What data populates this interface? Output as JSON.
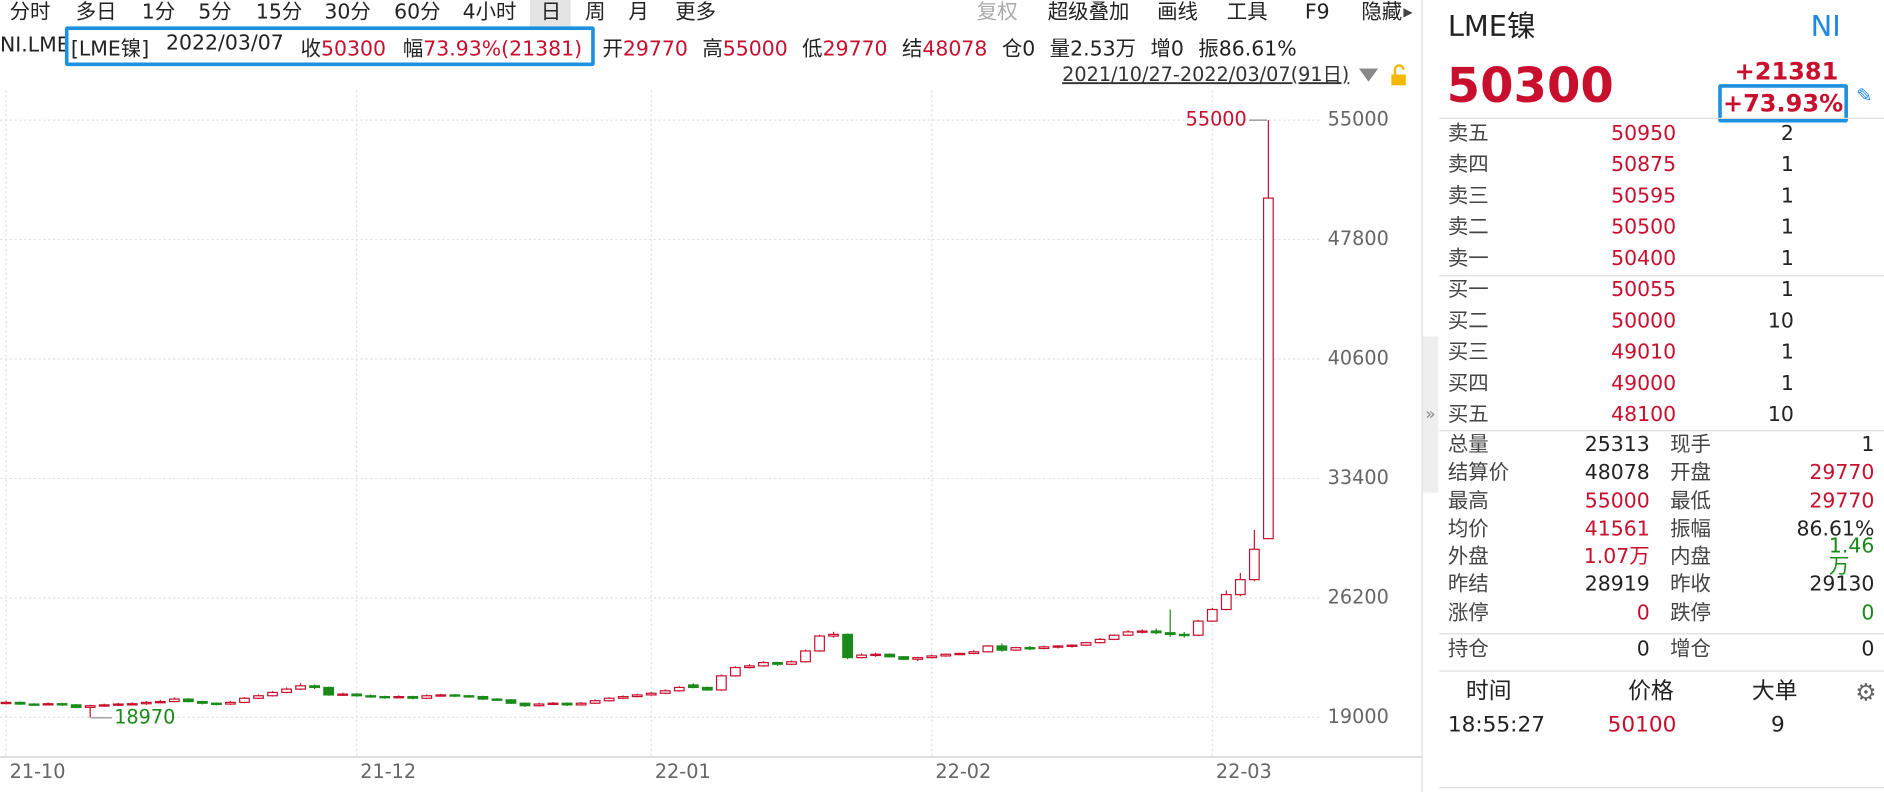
{
  "toolbar": {
    "periods": [
      "分时",
      "多日",
      "1分",
      "5分",
      "15分",
      "30分",
      "60分",
      "4小时",
      "日",
      "周",
      "月",
      "更多"
    ],
    "tools": [
      "复权",
      "超级叠加",
      "画线",
      "工具",
      "F9",
      "隐藏"
    ]
  },
  "info_bar": {
    "symbol": "NI.LME",
    "name": "[LME镍]",
    "date": "2022/03/07",
    "items": [
      {
        "label": "收",
        "value": 50300,
        "color": "#c8102e"
      },
      {
        "label": "幅",
        "value": "73.93%(21381)",
        "color": "#c8102e"
      },
      {
        "label": "开",
        "value": 29770,
        "color": "#c8102e"
      },
      {
        "label": "高",
        "value": 55000,
        "color": "#c8102e"
      },
      {
        "label": "低",
        "value": 29770,
        "color": "#c8102e"
      },
      {
        "label": "结",
        "value": 48078,
        "color": "#c8102e"
      },
      {
        "label": "仓",
        "value": 0,
        "color": "#222222"
      },
      {
        "label": "量",
        "value": "2.53万",
        "color": "#222222"
      },
      {
        "label": "增",
        "value": 0,
        "color": "#222222"
      },
      {
        "label": "振",
        "value": "86.61%",
        "color": "#222222"
      }
    ]
  },
  "chart": {
    "type": "candlestick",
    "range_label": "2021/10/27-2022/03/07(91日)",
    "up_color": "#c8102e",
    "down_color": "#1a8a1a",
    "ylim": [
      16610,
      56810
    ],
    "yticks": [
      19000,
      26200,
      33400,
      40600,
      47800,
      55000
    ],
    "xlim": [
      -0.43,
      93.8
    ],
    "xticks": [
      {
        "value": 0,
        "label": "21-10"
      },
      {
        "value": 25,
        "label": "21-12"
      },
      {
        "value": 46,
        "label": "22-01"
      },
      {
        "value": 66,
        "label": "22-02"
      },
      {
        "value": 86,
        "label": "22-03"
      }
    ],
    "candles": [
      [
        19850,
        20000,
        19780,
        19900
      ],
      [
        19900,
        19950,
        19750,
        19800
      ],
      [
        19800,
        19850,
        19700,
        19780
      ],
      [
        19780,
        19900,
        19720,
        19820
      ],
      [
        19820,
        19880,
        19680,
        19750
      ],
      [
        19750,
        19800,
        19550,
        19600
      ],
      [
        19600,
        19760,
        18970,
        19700
      ],
      [
        19700,
        19820,
        19620,
        19750
      ],
      [
        19750,
        19880,
        19680,
        19800
      ],
      [
        19800,
        19900,
        19720,
        19820
      ],
      [
        19820,
        19980,
        19750,
        19900
      ],
      [
        19900,
        20050,
        19850,
        19950
      ],
      [
        19950,
        20200,
        19900,
        20100
      ],
      [
        20100,
        20150,
        19900,
        19950
      ],
      [
        19950,
        20000,
        19780,
        19850
      ],
      [
        19850,
        19900,
        19720,
        19800
      ],
      [
        19800,
        19980,
        19750,
        19900
      ],
      [
        19900,
        20220,
        19850,
        20150
      ],
      [
        20150,
        20380,
        20100,
        20300
      ],
      [
        20300,
        20580,
        20250,
        20500
      ],
      [
        20500,
        20800,
        20450,
        20700
      ],
      [
        20700,
        21050,
        20650,
        20900
      ],
      [
        20900,
        20980,
        20700,
        20800
      ],
      [
        20800,
        20850,
        20300,
        20350
      ],
      [
        20350,
        20480,
        20300,
        20400
      ],
      [
        20400,
        20450,
        20250,
        20300
      ],
      [
        20300,
        20380,
        20180,
        20250
      ],
      [
        20250,
        20300,
        20120,
        20200
      ],
      [
        20200,
        20320,
        20150,
        20250
      ],
      [
        20250,
        20300,
        20080,
        20150
      ],
      [
        20150,
        20380,
        20100,
        20300
      ],
      [
        20300,
        20420,
        20250,
        20350
      ],
      [
        20350,
        20400,
        20220,
        20300
      ],
      [
        20300,
        20350,
        20180,
        20250
      ],
      [
        20250,
        20300,
        20050,
        20100
      ],
      [
        20100,
        20150,
        19980,
        20050
      ],
      [
        20050,
        20100,
        19800,
        19850
      ],
      [
        19850,
        19900,
        19620,
        19700
      ],
      [
        19700,
        19880,
        19650,
        19800
      ],
      [
        19800,
        19920,
        19750,
        19850
      ],
      [
        19850,
        19900,
        19680,
        19750
      ],
      [
        19750,
        19920,
        19700,
        19850
      ],
      [
        19850,
        20080,
        19800,
        20000
      ],
      [
        20000,
        20220,
        19950,
        20150
      ],
      [
        20150,
        20320,
        20100,
        20250
      ],
      [
        20250,
        20420,
        20200,
        20350
      ],
      [
        20350,
        20520,
        20300,
        20450
      ],
      [
        20450,
        20680,
        20400,
        20600
      ],
      [
        20600,
        20880,
        20550,
        20800
      ],
      [
        20950,
        21050,
        20750,
        20800
      ],
      [
        20800,
        20850,
        20600,
        20650
      ],
      [
        20650,
        21580,
        20600,
        21500
      ],
      [
        21500,
        22080,
        21450,
        22000
      ],
      [
        22000,
        22200,
        21950,
        22100
      ],
      [
        22100,
        22380,
        22050,
        22300
      ],
      [
        22300,
        22350,
        22100,
        22200
      ],
      [
        22200,
        22420,
        22150,
        22350
      ],
      [
        22350,
        23080,
        22300,
        23000
      ],
      [
        23000,
        23980,
        22950,
        23900
      ],
      [
        23900,
        24150,
        23800,
        24000
      ],
      [
        24000,
        24050,
        22500,
        22600
      ],
      [
        22600,
        22850,
        22550,
        22750
      ],
      [
        22750,
        22900,
        22650,
        22800
      ],
      [
        22800,
        22850,
        22600,
        22650
      ],
      [
        22650,
        22700,
        22450,
        22500
      ],
      [
        22500,
        22650,
        22400,
        22600
      ],
      [
        22600,
        22780,
        22550,
        22700
      ],
      [
        22700,
        22850,
        22650,
        22800
      ],
      [
        22800,
        22900,
        22750,
        22850
      ],
      [
        22850,
        23050,
        22800,
        22950
      ],
      [
        22950,
        23350,
        22900,
        23300
      ],
      [
        23300,
        23450,
        22950,
        23050
      ],
      [
        23050,
        23250,
        23000,
        23200
      ],
      [
        23200,
        23300,
        23050,
        23150
      ],
      [
        23150,
        23320,
        23100,
        23250
      ],
      [
        23250,
        23350,
        23150,
        23300
      ],
      [
        23300,
        23400,
        23200,
        23350
      ],
      [
        23350,
        23550,
        23300,
        23500
      ],
      [
        23500,
        23780,
        23450,
        23700
      ],
      [
        23700,
        24000,
        23650,
        23950
      ],
      [
        23950,
        24250,
        23900,
        24150
      ],
      [
        24150,
        24300,
        24050,
        24200
      ],
      [
        24200,
        24350,
        24000,
        24100
      ],
      [
        24100,
        25500,
        23850,
        24000
      ],
      [
        24000,
        24150,
        23800,
        23950
      ],
      [
        23950,
        24880,
        23900,
        24800
      ],
      [
        24800,
        25600,
        24750,
        25500
      ],
      [
        25500,
        26650,
        25450,
        26400
      ],
      [
        26400,
        27700,
        26300,
        27300
      ],
      [
        27300,
        30300,
        27200,
        29130
      ],
      [
        29770,
        55000,
        29770,
        50300
      ]
    ]
  },
  "quote": {
    "name": "LME镍",
    "code": "NI",
    "price": 50300,
    "change": "+21381",
    "change_pct": "+73.93%"
  },
  "order_book": {
    "asks": [
      {
        "label": "卖五",
        "price": 50950,
        "volume": 2
      },
      {
        "label": "卖四",
        "price": 50875,
        "volume": 1
      },
      {
        "label": "卖三",
        "price": 50595,
        "volume": 1
      },
      {
        "label": "卖二",
        "price": 50500,
        "volume": 1
      },
      {
        "label": "卖一",
        "price": 50400,
        "volume": 1
      }
    ],
    "bids": [
      {
        "label": "买一",
        "price": 50055,
        "volume": 1
      },
      {
        "label": "买二",
        "price": 50000,
        "volume": 10
      },
      {
        "label": "买三",
        "price": 49010,
        "volume": 1
      },
      {
        "label": "买四",
        "price": 49000,
        "volume": 1
      },
      {
        "label": "买五",
        "price": 48100,
        "volume": 10
      }
    ]
  },
  "stats": [
    [
      {
        "label": "总量",
        "value": 25313,
        "color": "#222222"
      },
      {
        "label": "现手",
        "value": 1,
        "color": "#222222"
      }
    ],
    [
      {
        "label": "结算价",
        "value": 48078,
        "color": "#222222"
      },
      {
        "label": "开盘",
        "value": 29770,
        "color": "#c8102e"
      }
    ],
    [
      {
        "label": "最高",
        "value": 55000,
        "color": "#c8102e"
      },
      {
        "label": "最低",
        "value": 29770,
        "color": "#c8102e"
      }
    ],
    [
      {
        "label": "均价",
        "value": 41561,
        "color": "#c8102e"
      },
      {
        "label": "振幅",
        "value": "86.61%",
        "color": "#222222"
      }
    ],
    [
      {
        "label": "外盘",
        "value": "1.07万",
        "color": "#c8102e"
      },
      {
        "label": "内盘",
        "value": "1.46万",
        "color": "#1a8a1a"
      }
    ],
    [
      {
        "label": "昨结",
        "value": 28919,
        "color": "#222222"
      },
      {
        "label": "昨收",
        "value": 29130,
        "color": "#222222"
      }
    ],
    [
      {
        "label": "涨停",
        "value": 0,
        "color": "#c8102e"
      },
      {
        "label": "跌停",
        "value": 0,
        "color": "#1a8a1a"
      }
    ]
  ],
  "position": [
    {
      "label": "持仓",
      "value": 0,
      "color": "#222222"
    },
    {
      "label": "增仓",
      "value": 0,
      "color": "#222222"
    }
  ],
  "trades": {
    "headers": [
      "时间",
      "价格",
      "大单"
    ],
    "rows": [
      {
        "time": "18:55:27",
        "price": 50100,
        "size": 9
      }
    ]
  }
}
